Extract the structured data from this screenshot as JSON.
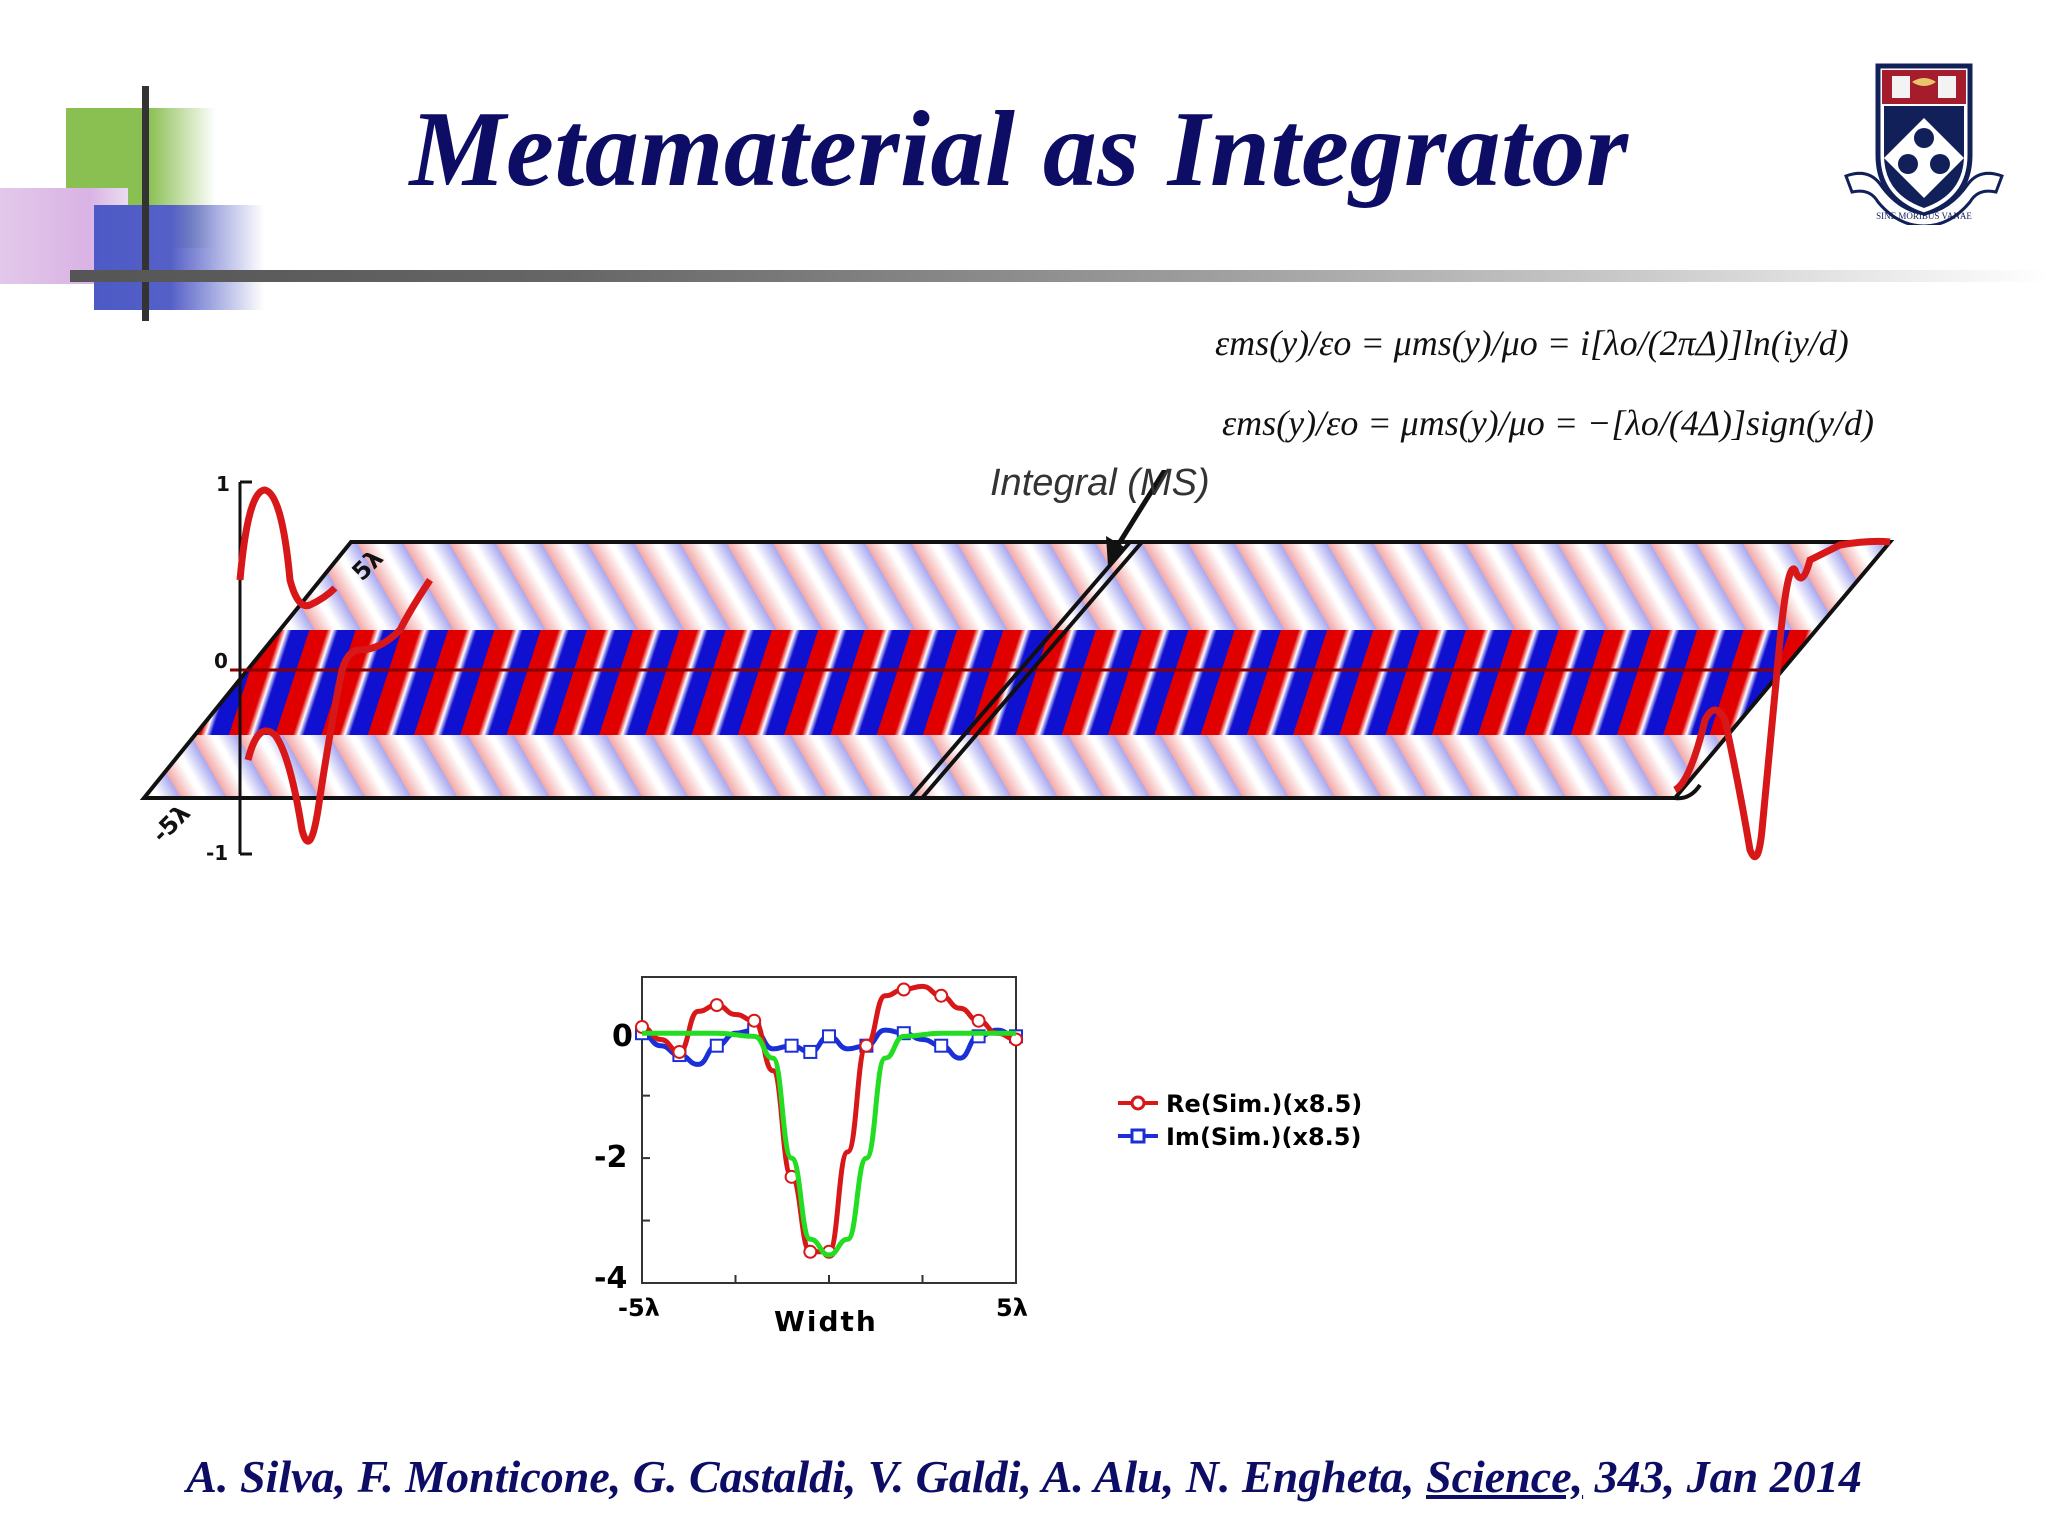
{
  "slide": {
    "title": "Metamaterial as Integrator",
    "equation_1": "εms(y)/εo = μms(y)/μo = i[λo/(2πΔ)]ln(iy/d)",
    "equation_2": "εms(y)/εo = μms(y)/μo = −[λo/(4Δ)]sign(y/d)",
    "callout_label": "Integral (MS)",
    "citation_prefix": "A. Silva, F. Monticone, G. Castaldi, V. Galdi, A. Alu, N. Engheta, ",
    "citation_journal": "Science,",
    "citation_suffix": " 343, Jan 2014",
    "logo_motto": "SINE MORIBUS VANAE"
  },
  "field_panel": {
    "y_ticks": [
      "1",
      "0",
      "-1"
    ],
    "width_labels": [
      "5λ",
      "-5λ"
    ],
    "colors": {
      "positive": "#e00000",
      "negative": "#1010d0",
      "profile": "#d81818"
    }
  },
  "chart_data": {
    "type": "line",
    "xlabel": "Width",
    "x_tick_labels": [
      "-5λ",
      "5λ"
    ],
    "y_tick_labels": [
      "0",
      "-2",
      "-4"
    ],
    "xlim": [
      -5,
      5
    ],
    "ylim": [
      -4,
      0.9
    ],
    "series": [
      {
        "name": "Re(Sim.)(x8.5)",
        "color": "#d81818",
        "marker": "circle",
        "x": [
          -5,
          -4.5,
          -4,
          -3.5,
          -3,
          -2.5,
          -2,
          -1.5,
          -1,
          -0.5,
          0,
          0.5,
          1,
          1.5,
          2,
          2.5,
          3,
          3.5,
          4,
          4.5,
          5
        ],
        "y": [
          0.1,
          -0.1,
          -0.3,
          0.35,
          0.45,
          0.3,
          0.2,
          -0.6,
          -2.3,
          -3.5,
          -3.5,
          -1.9,
          -0.2,
          0.6,
          0.7,
          0.75,
          0.6,
          0.4,
          0.2,
          0.0,
          -0.1
        ]
      },
      {
        "name": "Im(Sim.)(x8.5)",
        "color": "#1a2fd8",
        "marker": "square",
        "x": [
          -5,
          -4.5,
          -4,
          -3.5,
          -3,
          -2.5,
          -2,
          -1.5,
          -1,
          -0.5,
          0,
          0.5,
          1,
          1.5,
          2,
          2.5,
          3,
          3.5,
          4,
          4.5,
          5
        ],
        "y": [
          0.0,
          -0.2,
          -0.35,
          -0.5,
          -0.2,
          0.0,
          0.05,
          -0.25,
          -0.2,
          -0.3,
          -0.05,
          -0.25,
          -0.2,
          0.05,
          0.0,
          -0.1,
          -0.2,
          -0.4,
          -0.05,
          0.05,
          -0.05
        ]
      },
      {
        "color": "#22dd22",
        "marker": "none",
        "x": [
          -5,
          -4,
          -3,
          -2,
          -1.5,
          -1,
          -0.5,
          0,
          0.5,
          1,
          1.5,
          2,
          3,
          4,
          5
        ],
        "y": [
          0,
          0,
          0,
          -0.05,
          -0.4,
          -2.0,
          -3.3,
          -3.55,
          -3.3,
          -2.0,
          -0.4,
          -0.05,
          0,
          0,
          0
        ]
      }
    ]
  }
}
